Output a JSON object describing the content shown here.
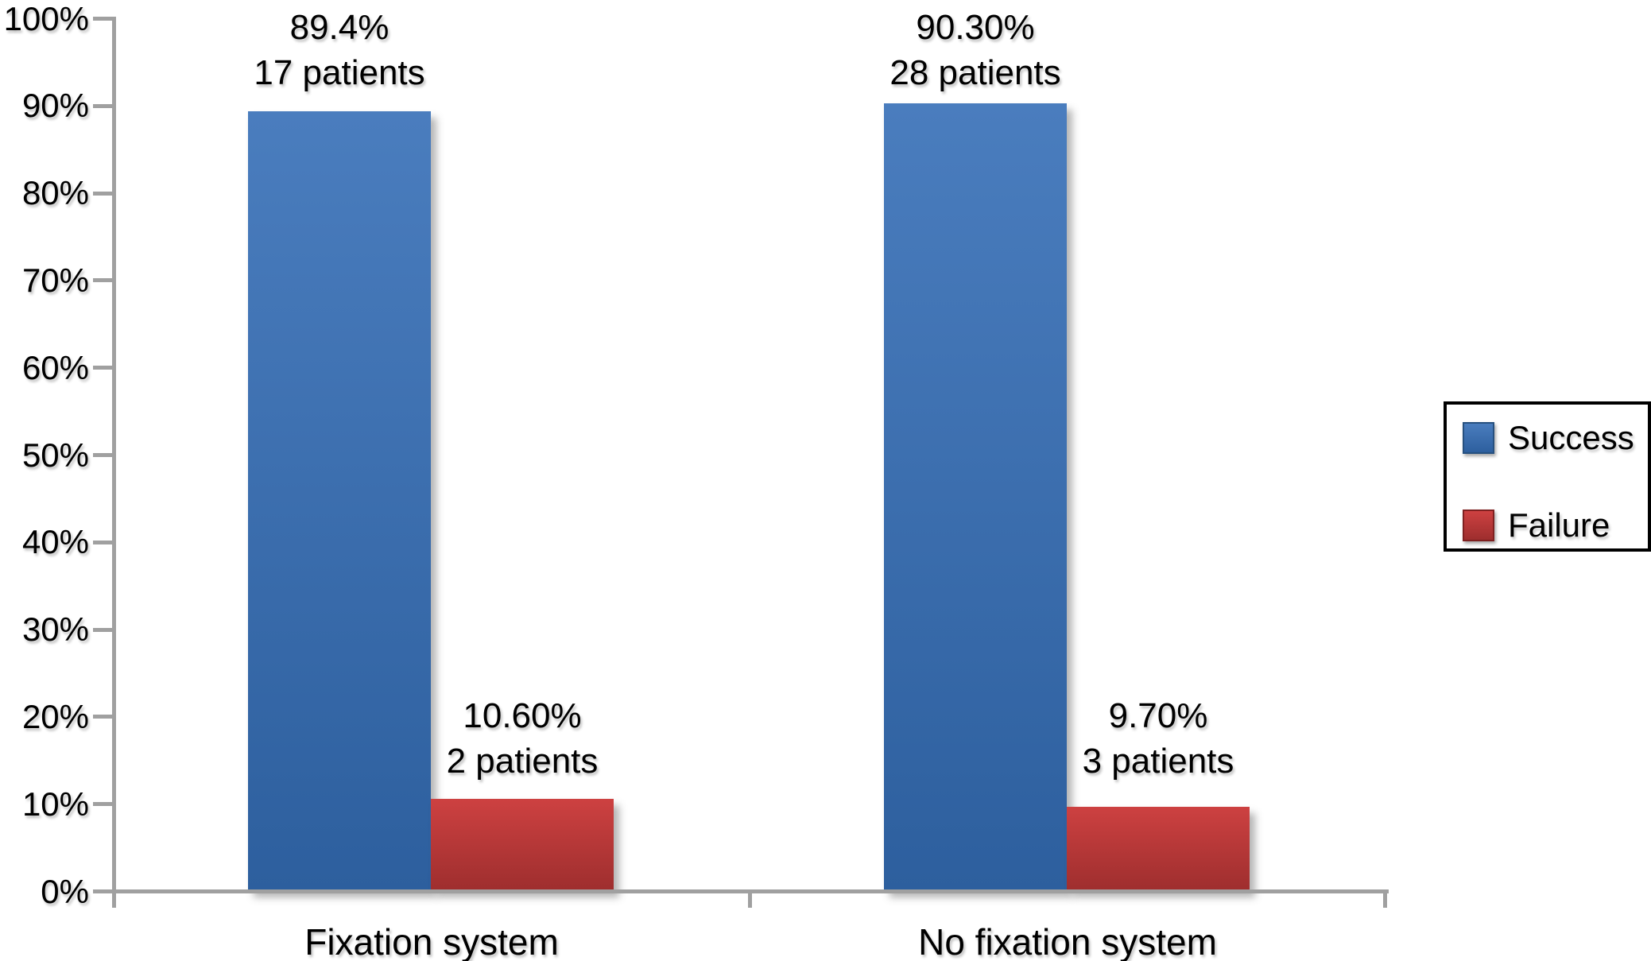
{
  "chart_data": {
    "type": "bar",
    "categories": [
      "Fixation system",
      "No fixation system"
    ],
    "series": [
      {
        "name": "Success",
        "values": [
          89.4,
          90.3
        ],
        "data_labels": [
          [
            "89.4%",
            "17 patients"
          ],
          [
            "90.30%",
            "28 patients"
          ]
        ],
        "color_top": "#4a7dbe",
        "color_bottom": "#2d5f9e",
        "border_color": "#26507f"
      },
      {
        "name": "Failure",
        "values": [
          10.6,
          9.7
        ],
        "data_labels": [
          [
            "10.60%",
            "2 patients"
          ],
          [
            "9.70%",
            "3 patients"
          ]
        ],
        "color_top": "#cd4141",
        "color_bottom": "#9e2e2e",
        "border_color": "#7f2020"
      }
    ],
    "yticks": [
      "0%",
      "10%",
      "20%",
      "30%",
      "40%",
      "50%",
      "60%",
      "70%",
      "80%",
      "90%",
      "100%"
    ],
    "ylim": [
      0,
      100
    ],
    "grid": false,
    "legend_position": "right",
    "axis_color": "#a0a0a0",
    "text_color": "#000000",
    "background_color": "#ffffff"
  }
}
